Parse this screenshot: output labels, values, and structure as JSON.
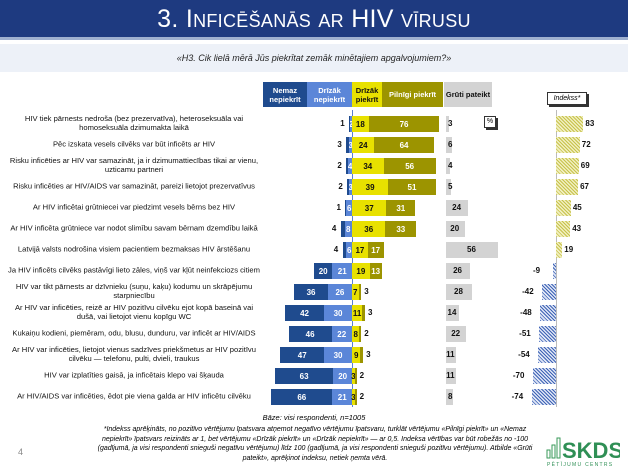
{
  "header": {
    "title": "3. Inficēšanās ar HIV vīrusu"
  },
  "question": "«H3. Cik lielā mērā Jūs piekrītat zemāk minētajiem apgalvojumiem?»",
  "chart_data": {
    "type": "bar",
    "stacked": true,
    "unit": "%",
    "unit_label": "%",
    "index_label": "Indekss*",
    "legend": [
      "Nemaz nepiekrīt",
      "Drīzāk nepiekrīt",
      "Drīzāk piekrīt",
      "Pilnīgi piekrīt",
      "Grūti pateikt"
    ],
    "colors": {
      "nemaz": "#1f4b8e",
      "drizak_ne": "#5b86d8",
      "drizak_pie": "#e8e100",
      "pilnigi": "#9c9400",
      "gruti": "#d3d3d3"
    },
    "rows": [
      {
        "label": "HIV tiek pārnests nedroša (bez prezervatīva), heteroseksuāla vai homoseksuāla dzimumakta laikā",
        "nemaz": 1,
        "drizak_ne": 2,
        "drizak_pie": 18,
        "pilnigi": 76,
        "gruti": 3,
        "index": 83
      },
      {
        "label": "Pēc izskata vesels cilvēks var būt inficēts ar HIV",
        "nemaz": 3,
        "drizak_ne": 3,
        "drizak_pie": 24,
        "pilnigi": 64,
        "gruti": 6,
        "index": 72
      },
      {
        "label": "Risku inficēties ar HIV var samazināt, ja ir dzimumattiecības tikai ar vienu, uzticamu partneri",
        "nemaz": 2,
        "drizak_ne": 4,
        "drizak_pie": 34,
        "pilnigi": 56,
        "gruti": 4,
        "index": 69
      },
      {
        "label": "Risku inficēties ar HIV/AIDS var samazināt, pareizi lietojot prezervatīvus",
        "nemaz": 2,
        "drizak_ne": 3,
        "drizak_pie": 39,
        "pilnigi": 51,
        "gruti": 5,
        "index": 67
      },
      {
        "label": "Ar HIV inficētai grūtniecei var piedzimt vesels bērns bez HIV",
        "nemaz": 1,
        "drizak_ne": 6,
        "drizak_pie": 37,
        "pilnigi": 31,
        "gruti": 24,
        "index": 45
      },
      {
        "label": "Ar HIV inficēta grūtniece var nodot slimību savam bērnam dzemdību laikā",
        "nemaz": 4,
        "drizak_ne": 8,
        "drizak_pie": 36,
        "pilnigi": 33,
        "gruti": 20,
        "index": 43
      },
      {
        "label": "Latvijā valsts nodrošina visiem pacientiem bezmaksas HIV ārstēšanu",
        "nemaz": 4,
        "drizak_ne": 6,
        "drizak_pie": 17,
        "pilnigi": 17,
        "gruti": 56,
        "index": 19
      },
      {
        "label": "Ja HIV inficēts cilvēks pastāvīgi lieto zāles, viņš var kļūt neinfekciozs citiem",
        "nemaz": 20,
        "drizak_ne": 21,
        "drizak_pie": 19,
        "pilnigi": 13,
        "gruti": 26,
        "index": -9
      },
      {
        "label": "HIV var tikt pārnests ar dzīvnieku (suņu, kaķu) kodumu un skrāpējumu starpniecību",
        "nemaz": 36,
        "drizak_ne": 26,
        "drizak_pie": 7,
        "pilnigi": 3,
        "gruti": 28,
        "index": -42
      },
      {
        "label": "Ar HIV var inficēties, reizē ar HIV pozitīvu cilvēku ejot kopā baseinā vai dušā, vai lietojot vienu kopīgu WC",
        "nemaz": 42,
        "drizak_ne": 30,
        "drizak_pie": 11,
        "pilnigi": 3,
        "gruti": 14,
        "index": -48
      },
      {
        "label": "Kukaiņu kodieni, piemēram, odu, blusu, dunduru, var inficēt ar HIV/AIDS",
        "nemaz": 46,
        "drizak_ne": 22,
        "drizak_pie": 8,
        "pilnigi": 2,
        "gruti": 22,
        "index": -51
      },
      {
        "label": "Ar HIV var inficēties, lietojot vienus sadzīves priekšmetus ar HIV pozitīvu cilvēku — telefonu, pulti, dvieli, traukus",
        "nemaz": 47,
        "drizak_ne": 30,
        "drizak_pie": 9,
        "pilnigi": 3,
        "gruti": 11,
        "index": -54
      },
      {
        "label": "HIV var izplatīties gaisā, ja inficētais klepo vai šķauda",
        "nemaz": 63,
        "drizak_ne": 20,
        "drizak_pie": 3,
        "pilnigi": 2,
        "gruti": 11,
        "index": -70
      },
      {
        "label": "Ar HIV/AIDS var inficēties, ēdot pie viena galda ar HIV inficētu cilvēku",
        "nemaz": 66,
        "drizak_ne": 21,
        "drizak_pie": 3,
        "pilnigi": 2,
        "gruti": 8,
        "index": -74
      }
    ]
  },
  "footer": {
    "base": "Bāze: visi respondenti, n=1005",
    "note": "*Indekss aprēķināts, no pozitīvo vērtējumu īpatsvara atņemot negatīvo vērtējumu īpatsvaru, turklāt vērtējumu «Pilnīgi piekrīt» un «Nemaz nepiekrīt» īpatsvars reizināts ar 1, bet vērtējumu «Drīzāk piekrīt» un «Drīzāk nepiekrīt» — ar 0,5. Indeksa vērtības var būt robežās no -100 (gadījumā, ja visi respondenti snieguši negatīvu vērtējumu) līdz 100 (gadījumā, ja visi respondenti snieguši pozitīvu vērtējumu). Atbilde «Grūti pateikt», aprēķinot indeksu, netiek ņemta vērā.",
    "page": "4",
    "logo": "SKDS",
    "logo_sub": "PĒTĪJUMU CENTRS"
  }
}
